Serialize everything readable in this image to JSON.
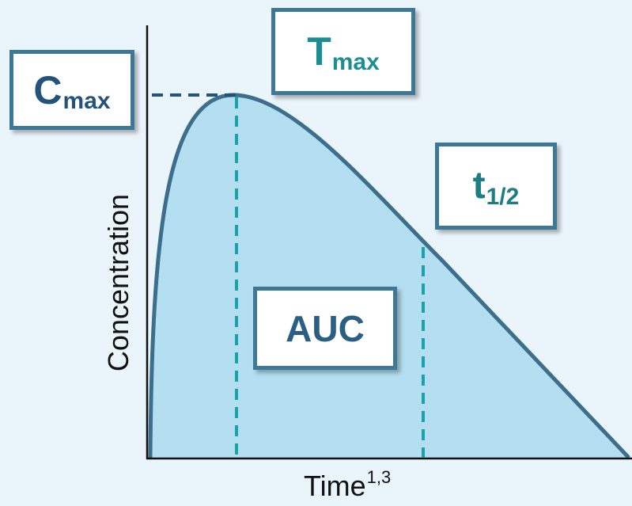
{
  "axes": {
    "y_label": "Concentration",
    "x_label": "Time",
    "x_label_superscript": "1,3"
  },
  "labels": {
    "cmax": {
      "main": "C",
      "sub": "max"
    },
    "tmax": {
      "main": "T",
      "sub": "max"
    },
    "thalf": {
      "main": "t",
      "sub": "1/2"
    },
    "auc": {
      "main": "AUC"
    }
  },
  "colors": {
    "background": "#eaf4fb",
    "curve_fill": "#b3dff1",
    "curve_stroke": "#3d6f8c",
    "marker_teal": "#1aa3ad",
    "marker_navy": "#23527a",
    "box_border": "#3d7897"
  }
}
